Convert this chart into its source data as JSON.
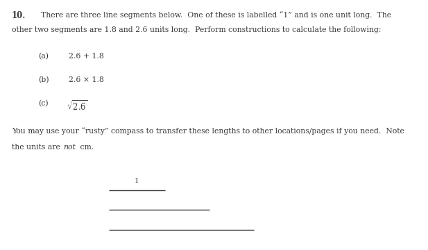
{
  "background_color": "#ffffff",
  "question_number": "10.",
  "intro_text_line1": "There are three line segments below.  One of these is labelled “1” and is one unit long.  The",
  "intro_text_line2": "other two segments are 1.8 and 2.6 units long.  Perform constructions to calculate the following:",
  "item_a_label": "(a)",
  "item_a_expr": "2.6 + 1.8",
  "item_b_label": "(b)",
  "item_b_expr": "2.6 × 1.8",
  "item_c_label": "(c)",
  "footer_line1": "You may use your “rusty” compass to transfer these lengths to other locations/pages if you need.  Note",
  "footer_line2_pre": "the units are ",
  "footer_line2_italic": "not",
  "footer_line2_post": " cm.",
  "segment1_label": "1",
  "text_color": "#3a3a3a",
  "font_size_body": 7.8,
  "font_size_number": 8.5
}
